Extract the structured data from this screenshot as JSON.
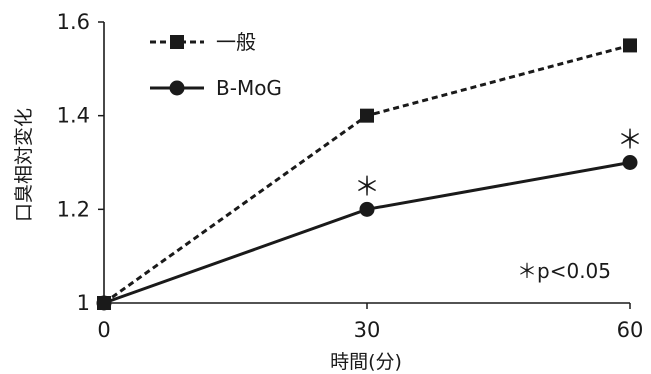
{
  "chart_data": {
    "type": "line",
    "x": [
      0,
      30,
      60
    ],
    "xticks": [
      "0",
      "30",
      "60"
    ],
    "yticks": [
      "1",
      "1.2",
      "1.4",
      "1.6"
    ],
    "xlabel": "時間(分)",
    "ylabel": "口臭相対変化",
    "xlim": [
      0,
      60
    ],
    "ylim": [
      1,
      1.6
    ],
    "grid": false,
    "legend_position": "top-left",
    "series": [
      {
        "name": "一般",
        "values": [
          1.0,
          1.4,
          1.55
        ],
        "style": "dashed",
        "marker": "square",
        "color": "#1a1a1a"
      },
      {
        "name": "B-MoG",
        "values": [
          1.0,
          1.2,
          1.3
        ],
        "style": "solid",
        "marker": "circle",
        "color": "#1a1a1a"
      }
    ],
    "significance_markers": [
      {
        "label": "＊",
        "x": 30,
        "y": 1.2
      },
      {
        "label": "＊",
        "x": 60,
        "y": 1.3
      }
    ],
    "annotation": "＊p<0.05"
  }
}
